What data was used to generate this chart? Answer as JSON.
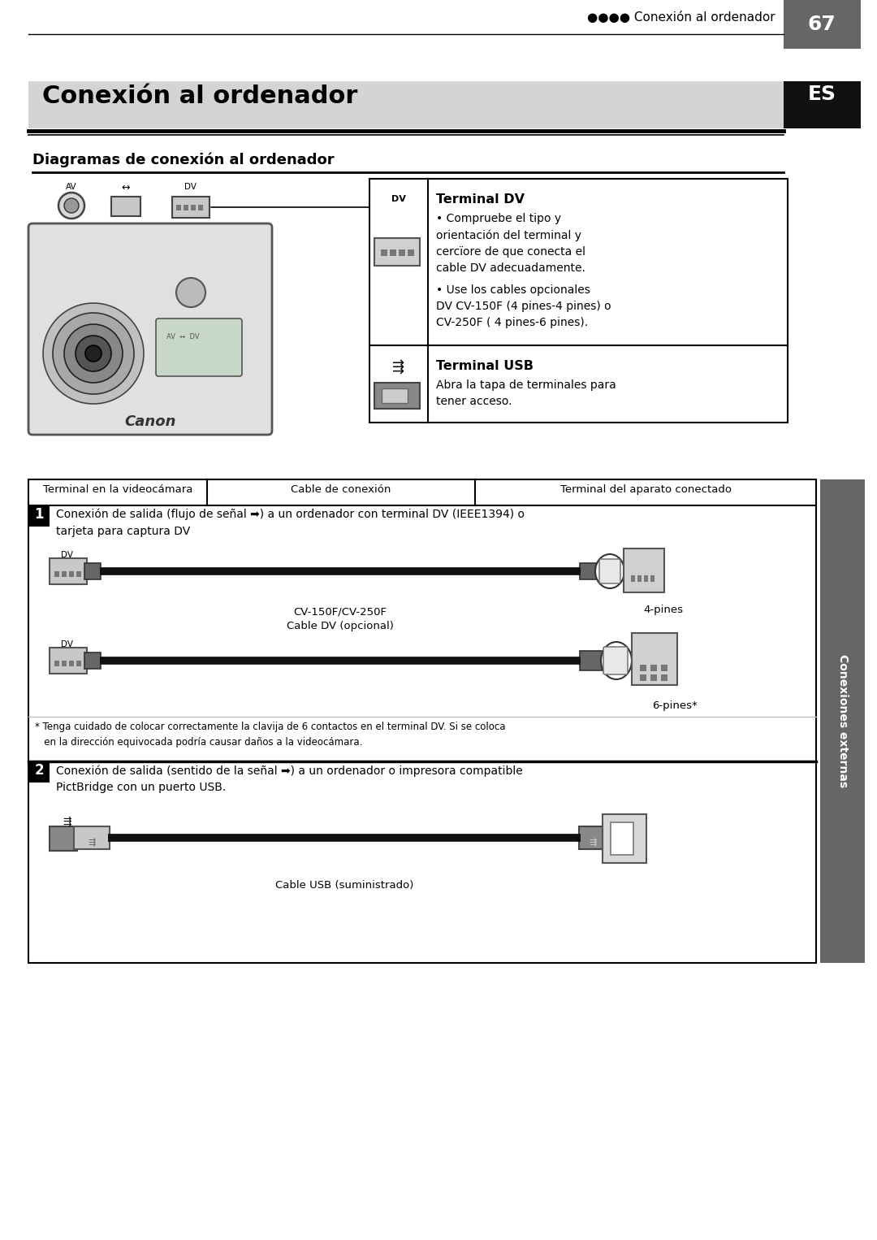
{
  "page_bg": "#ffffff",
  "header_text": "●●●● Conexión al ordenador",
  "header_page": "67",
  "header_page_bg": "#666666",
  "title_bg": "#d4d4d4",
  "title_text": "Conexión al ordenador",
  "es_bg": "#111111",
  "es_text": "ES",
  "subtitle": "Diagramas de conexión al ordenador",
  "terminal_dv_title": "Terminal DV",
  "terminal_dv_text1": "• Compruebe el tipo y\norientación del terminal y\ncercïore de que conecta el\ncable DV adecuadamente.",
  "terminal_dv_text2": "• Use los cables opcionales\nDV CV-150F (4 pines-4 pines) o\nCV-250F ( 4 pines-6 pines).",
  "terminal_usb_title": "Terminal USB",
  "terminal_usb_text": "Abra la tapa de terminales para\ntener acceso.",
  "table_header1": "Terminal en la videocámara",
  "table_header2": "Cable de conexión",
  "table_header3": "Terminal del aparato conectado",
  "row1_num": "1",
  "row1_text": "Conexión de salida (flujo de señal ➡) a un ordenador con terminal DV (IEEE1394) o\ntarjeta para captura DV",
  "cable1_label1": "CV-150F/CV-250F",
  "cable1_label2": "Cable DV (opcional)",
  "pin4_label": "4-pines",
  "pin6_label": "6-pines*",
  "footnote": "* Tenga cuidado de colocar correctamente la clavija de 6 contactos en el terminal DV. Si se coloca\n   en la dirección equivocada podría causar daños a la videocámara.",
  "row2_num": "2",
  "row2_text": "Conexión de salida (sentido de la señal ➡) a un ordenador o impresora compatible\nPictBridge con un puerto USB.",
  "cable2_label": "Cable USB (suministrado)",
  "sidebar_text": "Conexiones externas",
  "sidebar_bg": "#666666",
  "dv_label": "DV",
  "usb_symbol": "⇶"
}
